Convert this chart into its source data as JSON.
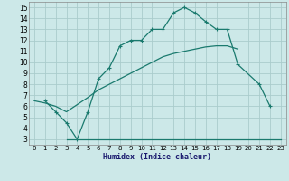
{
  "xlabel": "Humidex (Indice chaleur)",
  "background_color": "#cce8e8",
  "grid_color": "#aacccc",
  "line_color": "#1a7a6e",
  "xlim": [
    -0.5,
    23.5
  ],
  "ylim": [
    2.5,
    15.5
  ],
  "xticks": [
    0,
    1,
    2,
    3,
    4,
    5,
    6,
    7,
    8,
    9,
    10,
    11,
    12,
    13,
    14,
    15,
    16,
    17,
    18,
    19,
    20,
    21,
    22,
    23
  ],
  "yticks": [
    3,
    4,
    5,
    6,
    7,
    8,
    9,
    10,
    11,
    12,
    13,
    14,
    15
  ],
  "line1_x": [
    1,
    2,
    3,
    4,
    5,
    6,
    7,
    8,
    9,
    10,
    11,
    12,
    13,
    14,
    15,
    16,
    17,
    18,
    19,
    21,
    22
  ],
  "line1_y": [
    6.5,
    5.5,
    4.5,
    3.0,
    5.5,
    8.5,
    9.5,
    11.5,
    12.0,
    12.0,
    13.0,
    13.0,
    14.5,
    15.0,
    14.5,
    13.7,
    13.0,
    13.0,
    9.8,
    8.0,
    6.0
  ],
  "line2_x": [
    0,
    1,
    2,
    3,
    5,
    6,
    7,
    8,
    9,
    10,
    11,
    12,
    13,
    14,
    15,
    16,
    17,
    18,
    19
  ],
  "line2_y": [
    6.5,
    6.3,
    6.0,
    5.5,
    6.8,
    7.5,
    8.0,
    8.5,
    9.0,
    9.5,
    10.0,
    10.5,
    10.8,
    11.0,
    11.2,
    11.4,
    11.5,
    11.5,
    11.2
  ],
  "line3_x": [
    3,
    4,
    5,
    14,
    15,
    16,
    17,
    18,
    19,
    20,
    21,
    22,
    23
  ],
  "line3_y": [
    3.0,
    3.0,
    3.0,
    3.0,
    3.0,
    3.0,
    3.0,
    3.0,
    3.0,
    3.0,
    3.0,
    3.0,
    3.0
  ]
}
